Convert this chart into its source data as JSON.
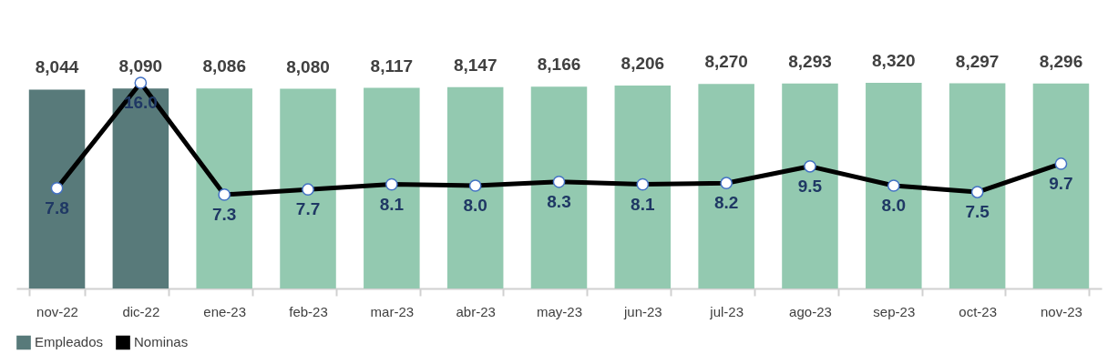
{
  "chart_data": {
    "type": "bar",
    "categories": [
      "nov-22",
      "dic-22",
      "ene-23",
      "feb-23",
      "mar-23",
      "abr-23",
      "may-23",
      "jun-23",
      "jul-23",
      "ago-23",
      "sep-23",
      "oct-23",
      "nov-23"
    ],
    "series": [
      {
        "name": "Empleados",
        "colors": [
          "#587a7a",
          "#587a7a",
          "#93c9b0",
          "#93c9b0",
          "#93c9b0",
          "#93c9b0",
          "#93c9b0",
          "#93c9b0",
          "#93c9b0",
          "#93c9b0",
          "#93c9b0",
          "#93c9b0",
          "#93c9b0"
        ],
        "values": [
          8044,
          8090,
          8086,
          8080,
          8117,
          8147,
          8166,
          8206,
          8270,
          8293,
          8320,
          8297,
          8296
        ],
        "value_labels": [
          "8,044",
          "8,090",
          "8,086",
          "8,080",
          "8,117",
          "8,147",
          "8,166",
          "8,206",
          "8,270",
          "8,293",
          "8,320",
          "8,297",
          "8,296"
        ]
      },
      {
        "name": "Nominas",
        "type": "line",
        "axis": "y2",
        "color": "#000000",
        "values": [
          7.8,
          16.0,
          7.3,
          7.7,
          8.1,
          8.0,
          8.3,
          8.1,
          8.2,
          9.5,
          8.0,
          7.5,
          9.7
        ],
        "value_labels": [
          "7.8",
          "16.0",
          "7.3",
          "7.7",
          "8.1",
          "8.0",
          "8.3",
          "8.1",
          "8.2",
          "9.5",
          "8.0",
          "7.5",
          "9.7"
        ]
      }
    ],
    "grid": false,
    "legend": "bottom",
    "marker": "circle",
    "line_style": "solid"
  }
}
